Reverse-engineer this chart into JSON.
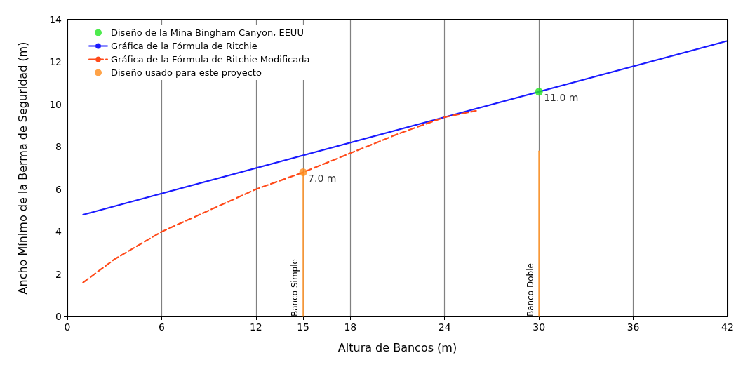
{
  "chart_data": {
    "type": "line",
    "xlabel": "Altura de Bancos (m)",
    "ylabel": "Ancho Mínimo de la Berma de Seguridad (m)",
    "xlim": [
      0,
      42
    ],
    "xticks": [
      0,
      6,
      12,
      15,
      18,
      24,
      30,
      36,
      42
    ],
    "ylim": [
      0,
      14
    ],
    "yticks": [
      0,
      2,
      4,
      6,
      8,
      10,
      12,
      14
    ],
    "grid": true,
    "legend": "top left",
    "annotations": [
      {
        "text": "11.0 m",
        "x": 30,
        "y": 10.6
      },
      {
        "text": "7.0 m",
        "x": 15,
        "y": 6.8
      }
    ],
    "series": [
      {
        "name": "Diseño de la Mina Bingham Canyon, EEUU",
        "type": "scatter",
        "marker": "circle",
        "color": "#22e622",
        "x": [
          30
        ],
        "values": [
          10.6
        ]
      },
      {
        "name": "Gráfica de la Fórmula de Ritchie",
        "marker": "none",
        "line_style": "solid",
        "color": "#1a1aff",
        "x": [
          1,
          42
        ],
        "values": [
          4.8,
          13.0
        ]
      },
      {
        "name": "Gráfica de la Fórmula de Ritchie Modificada",
        "marker": "none",
        "line_style": "dashed",
        "color": "#ff4a1a",
        "x": [
          1,
          3,
          6,
          9,
          12,
          15,
          18,
          21,
          24,
          26
        ],
        "values": [
          1.6,
          2.7,
          4.0,
          5.0,
          6.0,
          6.8,
          7.7,
          8.6,
          9.4,
          9.7
        ]
      },
      {
        "name": "Diseño usado para este proyecto",
        "type": "scatter",
        "marker": "circle",
        "color": "#ff8c1a",
        "x": [
          15
        ],
        "values": [
          6.8
        ]
      },
      {
        "name": "Banco Simple",
        "marker": "none",
        "line_style": "solid",
        "color": "#ff9933",
        "x": [
          15,
          15
        ],
        "values": [
          0,
          6.8
        ]
      },
      {
        "name": "Banco Doble",
        "marker": "none",
        "line_style": "solid",
        "color": "#ff9933",
        "x": [
          30,
          30
        ],
        "values": [
          0,
          7.8
        ]
      }
    ]
  }
}
